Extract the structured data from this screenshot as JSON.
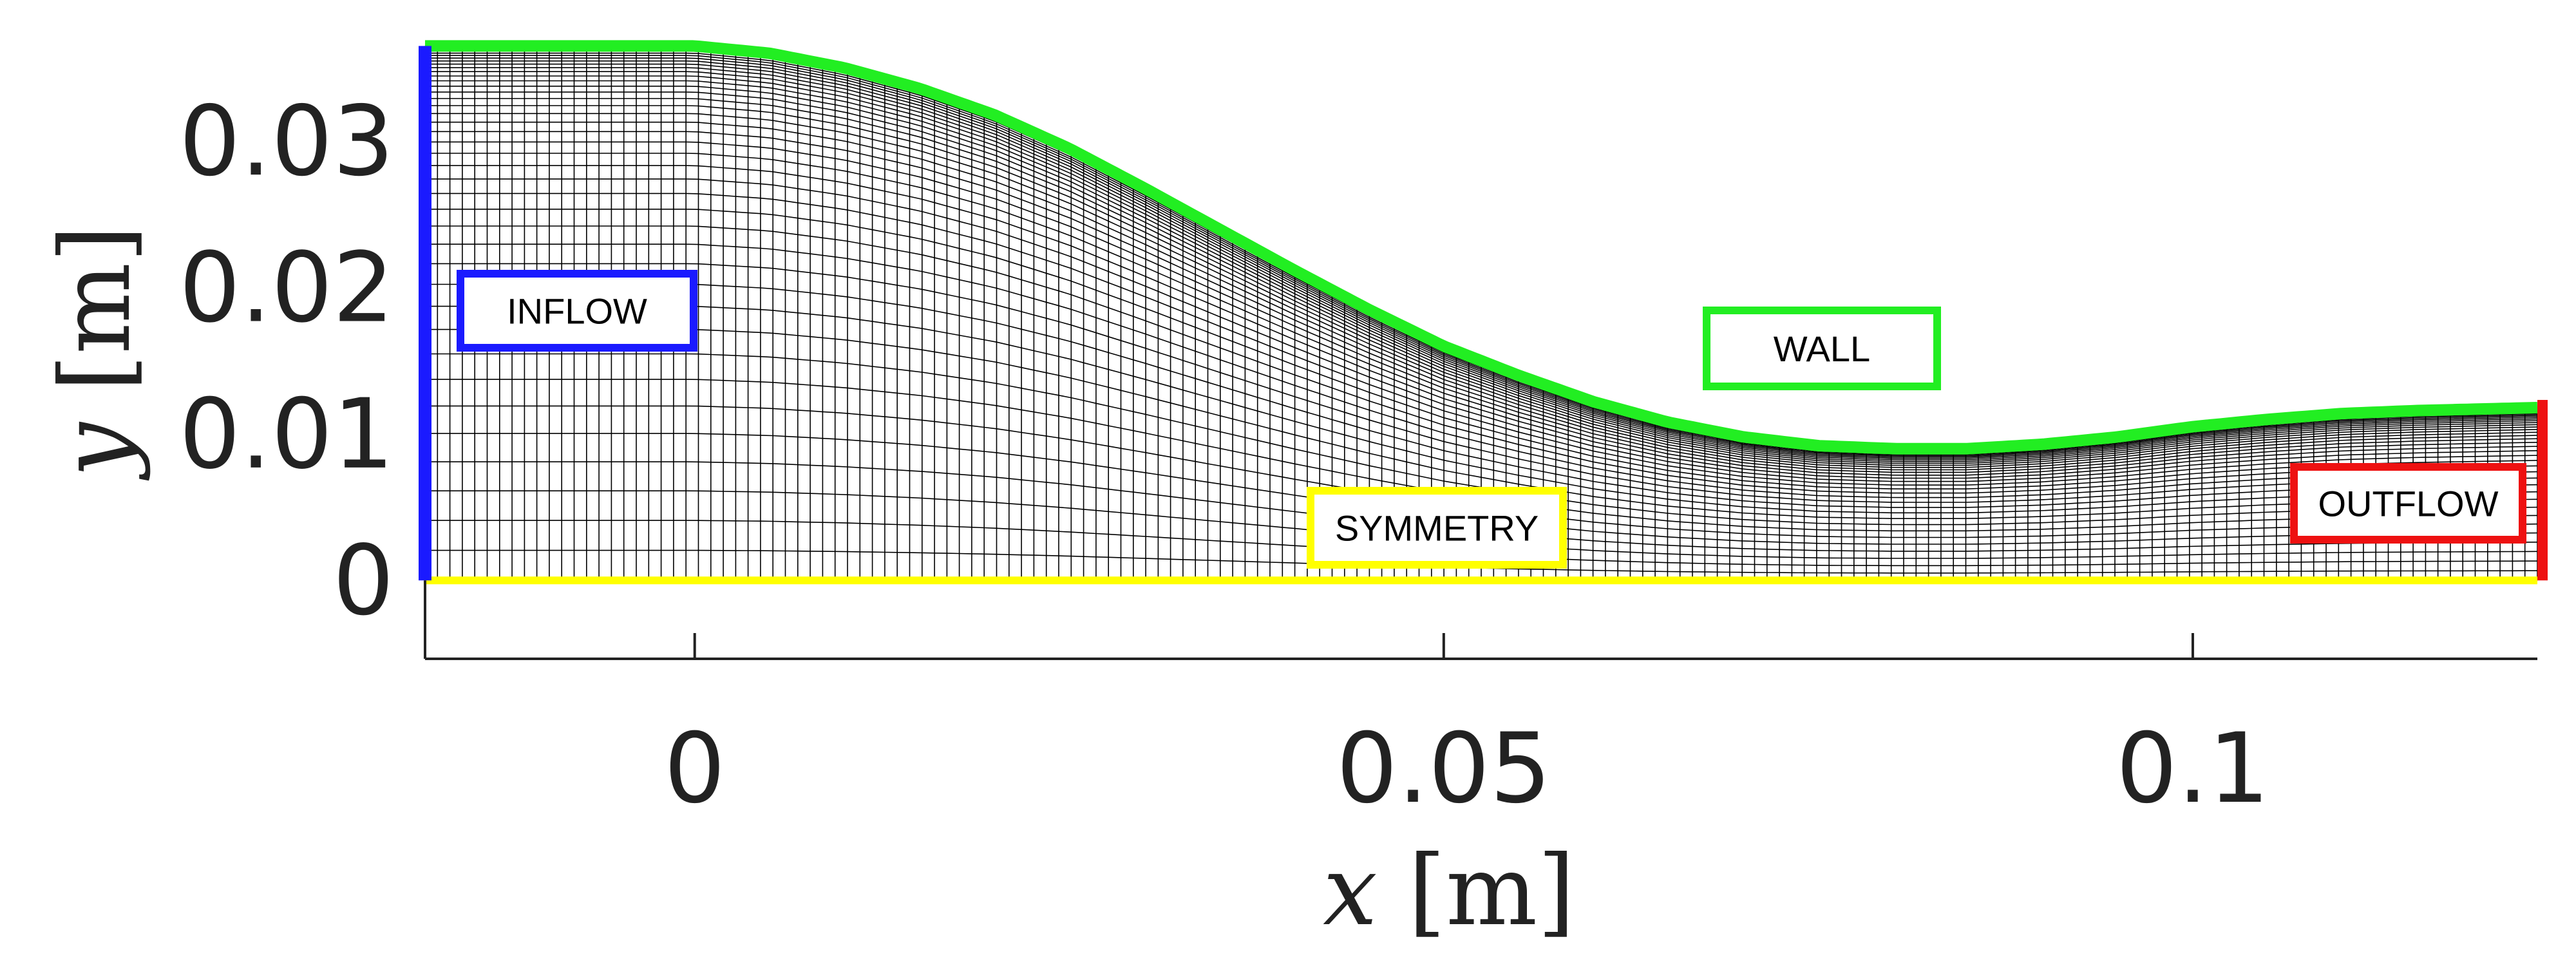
{
  "chart_data": {
    "type": "diagram",
    "xlabel_var": "x",
    "xlabel_unit": "[m]",
    "ylabel_var": "y",
    "ylabel_unit": "[m]",
    "xlim": [
      -0.018,
      0.123
    ],
    "ylim": [
      -0.005,
      0.037
    ],
    "x_ticks": [
      {
        "value": 0,
        "label": "0"
      },
      {
        "value": 0.05,
        "label": "0.05"
      },
      {
        "value": 0.1,
        "label": "0.1"
      }
    ],
    "y_ticks": [
      {
        "value": 0,
        "label": "0"
      },
      {
        "value": 0.01,
        "label": "0.01"
      },
      {
        "value": 0.02,
        "label": "0.02"
      },
      {
        "value": 0.03,
        "label": "0.03"
      }
    ],
    "wall_profile": {
      "x": [
        -0.018,
        0.0,
        0.005,
        0.01,
        0.015,
        0.02,
        0.025,
        0.03,
        0.035,
        0.04,
        0.045,
        0.05,
        0.055,
        0.06,
        0.065,
        0.07,
        0.075,
        0.08,
        0.085,
        0.09,
        0.095,
        0.1,
        0.105,
        0.11,
        0.115,
        0.123
      ],
      "y": [
        0.0365,
        0.0365,
        0.036,
        0.035,
        0.0336,
        0.0318,
        0.0295,
        0.0268,
        0.024,
        0.0212,
        0.0185,
        0.016,
        0.014,
        0.0122,
        0.0108,
        0.0098,
        0.0092,
        0.009,
        0.009,
        0.0093,
        0.0098,
        0.0105,
        0.011,
        0.0114,
        0.0116,
        0.0118
      ]
    },
    "regions": [
      {
        "name": "INFLOW",
        "color": "#1a1aff",
        "boundary": "left"
      },
      {
        "name": "WALL",
        "color": "#22ee22",
        "boundary": "top"
      },
      {
        "name": "SYMMETRY",
        "color": "#ffff00",
        "boundary": "bottom"
      },
      {
        "name": "OUTFLOW",
        "color": "#ee1111",
        "boundary": "right"
      }
    ],
    "mesh_color": "#000000"
  }
}
